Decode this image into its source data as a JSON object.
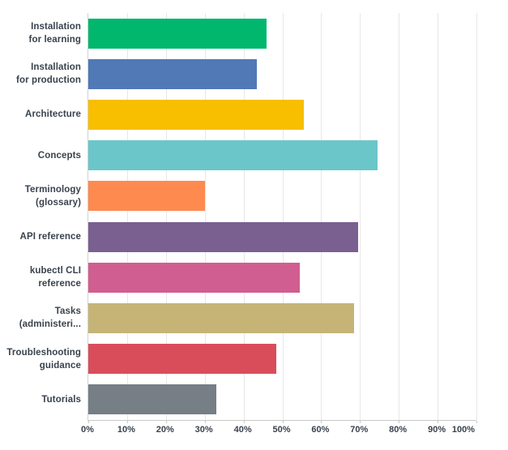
{
  "chart_data": {
    "type": "bar",
    "orientation": "horizontal",
    "categories": [
      "Installation for learning",
      "Installation for production",
      "Architecture",
      "Concepts",
      "Terminology (glossary)",
      "API reference",
      "kubectl CLI reference",
      "Tasks (administeri...",
      "Troubleshooting guidance",
      "Tutorials"
    ],
    "label_lines": [
      [
        "Installation",
        "for learning"
      ],
      [
        "Installation",
        "for production"
      ],
      [
        "Architecture"
      ],
      [
        "Concepts"
      ],
      [
        "Terminology",
        "(glossary)"
      ],
      [
        "API reference"
      ],
      [
        "kubectl CLI",
        "reference"
      ],
      [
        "Tasks",
        "(administeri..."
      ],
      [
        "Troubleshooting",
        "guidance"
      ],
      [
        "Tutorials"
      ]
    ],
    "values": [
      46,
      43.5,
      55.5,
      74.5,
      30,
      69.5,
      54.5,
      68.5,
      48.5,
      33
    ],
    "bar_colors": [
      "#00B76D",
      "#5079B6",
      "#F8BE00",
      "#6BC6CA",
      "#FE8A50",
      "#7A5F91",
      "#D15E90",
      "#C6B477",
      "#D94D5B",
      "#767E86"
    ],
    "xlim": [
      0,
      100
    ],
    "x_tick_labels": [
      "0%",
      "10%",
      "20%",
      "30%",
      "40%",
      "50%",
      "60%",
      "70%",
      "80%",
      "90%",
      "100%"
    ],
    "grid": "vertical-gridlines-on",
    "legend": "none"
  },
  "colors": {
    "background": "#FFFFFF",
    "text": "#39424D",
    "gridline": "#E7E7E7",
    "x_axis_line": "#C9C9C9",
    "y_axis_line": "#D2D2D2"
  }
}
